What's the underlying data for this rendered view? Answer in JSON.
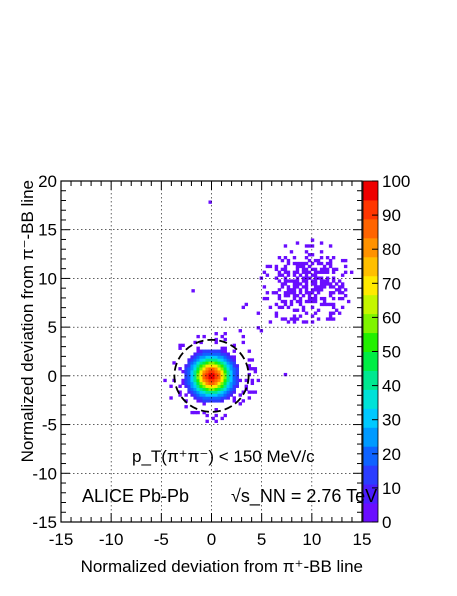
{
  "chart_data": {
    "type": "heatmap",
    "xlabel": "Normalized deviation from π⁺-BB line",
    "ylabel": "Normalized deviation from π⁻-BB line",
    "xlim": [
      -15,
      15
    ],
    "ylim": [
      -15,
      20
    ],
    "x_ticks": [
      "-15",
      "-10",
      "-5",
      "0",
      "5",
      "10",
      "15"
    ],
    "y_ticks": [
      "-15",
      "-10",
      "-5",
      "0",
      "5",
      "10",
      "15",
      "20"
    ],
    "grid": true,
    "z_range": [
      0,
      100
    ],
    "colorbar_ticks": [
      "0",
      "10",
      "20",
      "30",
      "40",
      "50",
      "60",
      "70",
      "80",
      "90",
      "100"
    ],
    "blobs": [
      {
        "name": "pion-pion peak",
        "center": [
          0,
          0
        ],
        "sigma": 1.3,
        "peak_counts": 100
      },
      {
        "name": "upper-right cluster",
        "center": [
          9.5,
          9.5
        ],
        "spread": 2.5,
        "counts": "1-3"
      }
    ],
    "cut_circle": {
      "center": [
        0,
        0
      ],
      "radius": 3.7,
      "style": "dashed"
    },
    "annotations": {
      "selection": "p_T(π⁺π⁻) < 150 MeV/c",
      "experiment": "ALICE Pb-Pb",
      "energy": "√s_NN = 2.76 TeV"
    }
  }
}
